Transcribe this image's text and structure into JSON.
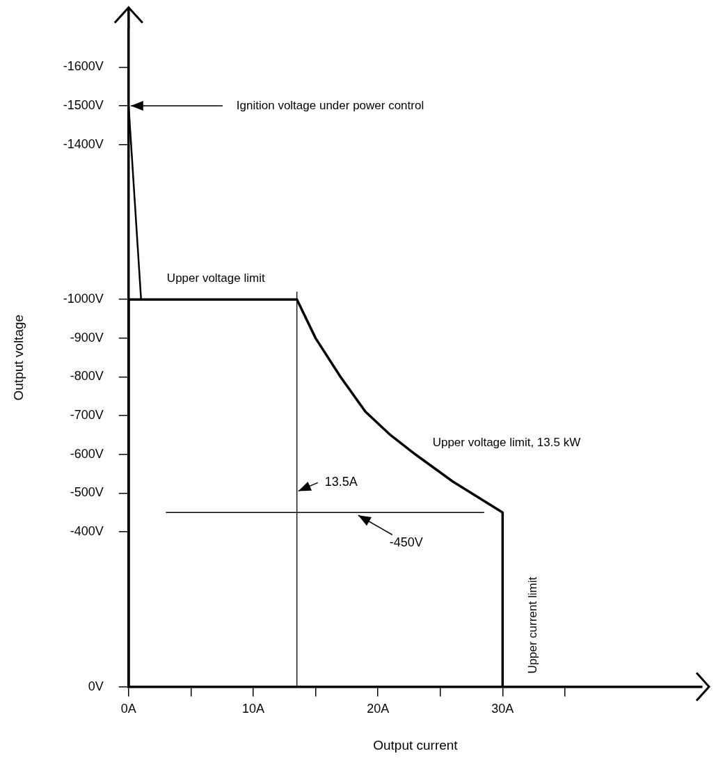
{
  "chart_data": {
    "type": "line",
    "xlabel": "Output current",
    "ylabel": "Output voltage",
    "xlim": [
      0,
      46
    ],
    "xticks": [
      {
        "value": 0,
        "label": "0A"
      },
      {
        "value": 5,
        "label": null
      },
      {
        "value": 10,
        "label": "10A"
      },
      {
        "value": 15,
        "label": null
      },
      {
        "value": 20,
        "label": "20A"
      },
      {
        "value": 25,
        "label": null
      },
      {
        "value": 30,
        "label": "30A"
      },
      {
        "value": 35,
        "label": null
      }
    ],
    "ylim": [
      0,
      -1700
    ],
    "yticks": [
      {
        "value": 0,
        "label": "0V"
      },
      {
        "value": -400,
        "label": "-400V"
      },
      {
        "value": -500,
        "label": "-500V"
      },
      {
        "value": -600,
        "label": "-600V"
      },
      {
        "value": -700,
        "label": "-700V"
      },
      {
        "value": -800,
        "label": "-800V"
      },
      {
        "value": -900,
        "label": "-900V"
      },
      {
        "value": -1000,
        "label": "-1000V"
      },
      {
        "value": -1400,
        "label": "-1400V"
      },
      {
        "value": -1500,
        "label": "-1500V"
      },
      {
        "value": -1600,
        "label": "-1600V"
      }
    ],
    "series": [
      {
        "color": "#000000",
        "x": [
          0,
          0,
          13.5,
          15,
          17,
          19,
          21,
          23,
          26,
          30,
          30
        ],
        "values": [
          0,
          -1000,
          -1000,
          -900,
          -800,
          -710,
          -650,
          -600,
          -530,
          -450,
          0
        ]
      },
      {
        "color": "#000000",
        "x": [
          0,
          1
        ],
        "values": [
          -1500,
          -1000
        ]
      }
    ],
    "ref_lines": [
      {
        "axis": "x",
        "value": 13.5,
        "label": "13.5A",
        "color": "#000000"
      },
      {
        "axis": "y",
        "value": -450,
        "label": "-450V",
        "color": "#000000"
      }
    ],
    "annotations": [
      {
        "text": "Ignition voltage under power control",
        "x": 0,
        "y": -1500
      },
      {
        "text": "Upper voltage limit",
        "x": 7,
        "y": -1000
      },
      "Upper voltage limit, 13.5 kW",
      "Upper current limit"
    ],
    "grid": false,
    "legend": false,
    "marker": "none"
  }
}
